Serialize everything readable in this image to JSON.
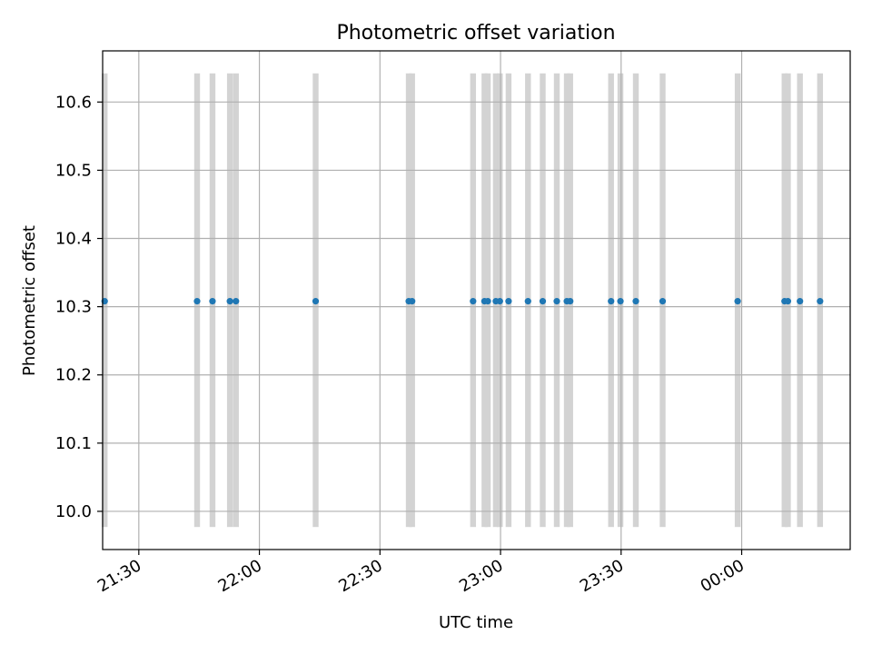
{
  "chart_data": {
    "type": "scatter",
    "title": "Photometric offset variation",
    "xlabel": "UTC time",
    "ylabel": "Photometric offset",
    "grid": true,
    "x_axis": {
      "type": "time",
      "min": "2023-01-01T21:21:00",
      "max": "2023-01-02T00:27:00",
      "ticks": [
        {
          "value": "2023-01-01T21:30:00",
          "label": "21:30"
        },
        {
          "value": "2023-01-01T22:00:00",
          "label": "22:00"
        },
        {
          "value": "2023-01-01T22:30:00",
          "label": "22:30"
        },
        {
          "value": "2023-01-01T23:00:00",
          "label": "23:00"
        },
        {
          "value": "2023-01-01T23:30:00",
          "label": "23:30"
        },
        {
          "value": "2023-01-02T00:00:00",
          "label": "00:00"
        }
      ]
    },
    "y_axis": {
      "min": 9.944,
      "max": 10.675,
      "ticks": [
        {
          "value": 10.0,
          "label": "10.0"
        },
        {
          "value": 10.1,
          "label": "10.1"
        },
        {
          "value": 10.2,
          "label": "10.2"
        },
        {
          "value": 10.3,
          "label": "10.3"
        },
        {
          "value": 10.4,
          "label": "10.4"
        },
        {
          "value": 10.5,
          "label": "10.5"
        },
        {
          "value": 10.6,
          "label": "10.6"
        }
      ]
    },
    "vertical_bands": {
      "y_range": [
        9.977,
        10.642
      ],
      "color": "#d3d3d3"
    },
    "series": [
      {
        "marker_color": "#1f77b4",
        "points": [
          {
            "x": "2023-01-01T21:21:30",
            "y": 10.308
          },
          {
            "x": "2023-01-01T21:44:30",
            "y": 10.308
          },
          {
            "x": "2023-01-01T21:48:20",
            "y": 10.308
          },
          {
            "x": "2023-01-01T21:52:40",
            "y": 10.308
          },
          {
            "x": "2023-01-01T21:54:10",
            "y": 10.308
          },
          {
            "x": "2023-01-01T22:14:00",
            "y": 10.308
          },
          {
            "x": "2023-01-01T22:37:10",
            "y": 10.308
          },
          {
            "x": "2023-01-01T22:38:00",
            "y": 10.308
          },
          {
            "x": "2023-01-01T22:53:10",
            "y": 10.308
          },
          {
            "x": "2023-01-01T22:56:00",
            "y": 10.308
          },
          {
            "x": "2023-01-01T22:56:50",
            "y": 10.308
          },
          {
            "x": "2023-01-01T22:58:50",
            "y": 10.308
          },
          {
            "x": "2023-01-01T22:59:50",
            "y": 10.308
          },
          {
            "x": "2023-01-01T23:02:00",
            "y": 10.308
          },
          {
            "x": "2023-01-01T23:06:50",
            "y": 10.308
          },
          {
            "x": "2023-01-01T23:10:30",
            "y": 10.308
          },
          {
            "x": "2023-01-01T23:14:00",
            "y": 10.308
          },
          {
            "x": "2023-01-01T23:16:30",
            "y": 10.308
          },
          {
            "x": "2023-01-01T23:17:20",
            "y": 10.308
          },
          {
            "x": "2023-01-01T23:27:30",
            "y": 10.308
          },
          {
            "x": "2023-01-01T23:29:50",
            "y": 10.308
          },
          {
            "x": "2023-01-01T23:33:40",
            "y": 10.308
          },
          {
            "x": "2023-01-01T23:40:20",
            "y": 10.308
          },
          {
            "x": "2023-01-01T23:59:00",
            "y": 10.308
          },
          {
            "x": "2023-01-02T00:10:40",
            "y": 10.308
          },
          {
            "x": "2023-01-02T00:11:30",
            "y": 10.308
          },
          {
            "x": "2023-01-02T00:14:30",
            "y": 10.308
          },
          {
            "x": "2023-01-02T00:19:30",
            "y": 10.308
          }
        ]
      }
    ]
  }
}
